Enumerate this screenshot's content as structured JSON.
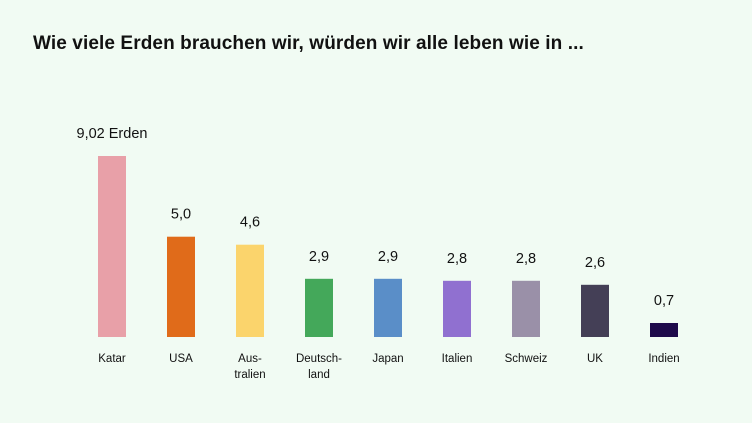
{
  "chart_data": {
    "type": "bar",
    "title": "Wie viele Erden brauchen wir, würden wir alle leben wie in ...",
    "categories": [
      "Katar",
      "USA",
      "Australien",
      "Deutschland",
      "Japan",
      "Italien",
      "Schweiz",
      "UK",
      "Indien"
    ],
    "category_display": [
      [
        "Katar"
      ],
      [
        "USA"
      ],
      [
        "Aus-",
        "tralien"
      ],
      [
        "Deutsch-",
        "land"
      ],
      [
        "Japan"
      ],
      [
        "Italien"
      ],
      [
        "Schweiz"
      ],
      [
        "UK"
      ],
      [
        "Indien"
      ]
    ],
    "values": [
      9.02,
      5.0,
      4.6,
      2.9,
      2.9,
      2.8,
      2.8,
      2.6,
      0.7
    ],
    "value_labels": [
      "9,02 Erden",
      "5,0",
      "4,6",
      "2,9",
      "2,9",
      "2,8",
      "2,8",
      "2,6",
      "0,7"
    ],
    "colors": [
      "#e8a0a8",
      "#e06b1a",
      "#fbd46c",
      "#44a85a",
      "#5a8ec8",
      "#9070d0",
      "#9a90a8",
      "#443f56",
      "#1e0a4a"
    ],
    "xlabel": "",
    "ylabel": "",
    "ylim": [
      0,
      9.02
    ],
    "grid": false,
    "legend": "none"
  }
}
